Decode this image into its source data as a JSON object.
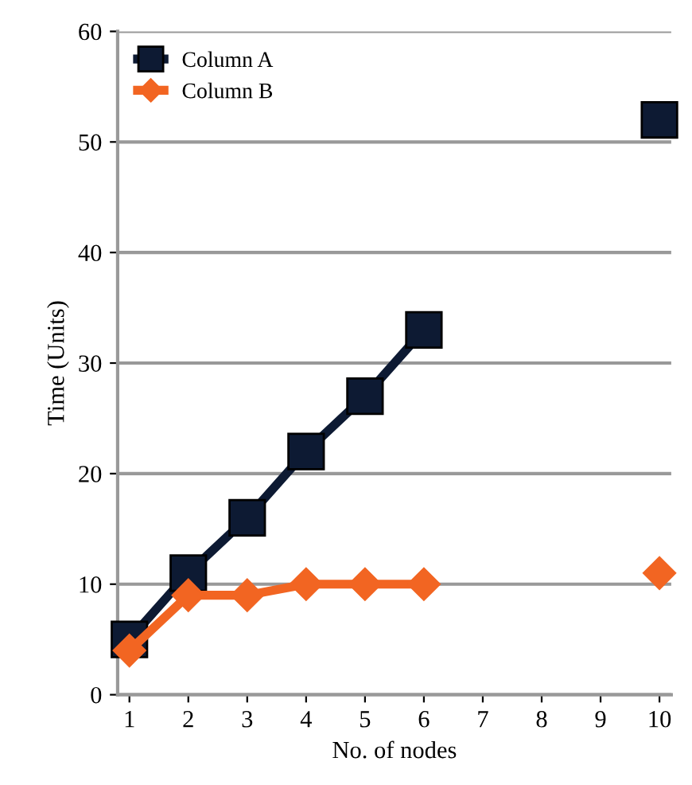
{
  "chart_data": {
    "type": "line",
    "xlabel": "No. of nodes",
    "ylabel": "Time (Units)",
    "categories": [
      "1",
      "2",
      "3",
      "4",
      "5",
      "6",
      "7",
      "8",
      "9",
      "10"
    ],
    "series": [
      {
        "name": "Column A",
        "color": "#0d1a33",
        "marker": "square",
        "values": [
          5,
          11,
          16,
          22,
          27,
          33,
          null,
          null,
          null,
          52
        ]
      },
      {
        "name": "Column B",
        "color": "#f26522",
        "marker": "diamond",
        "values": [
          4,
          9,
          9,
          10,
          10,
          10,
          null,
          null,
          null,
          11
        ]
      }
    ],
    "ylim": [
      0,
      60
    ],
    "yticks": [
      0,
      10,
      20,
      30,
      40,
      50,
      60
    ],
    "grid": "y",
    "legend": "top left",
    "line_style": "solid"
  }
}
